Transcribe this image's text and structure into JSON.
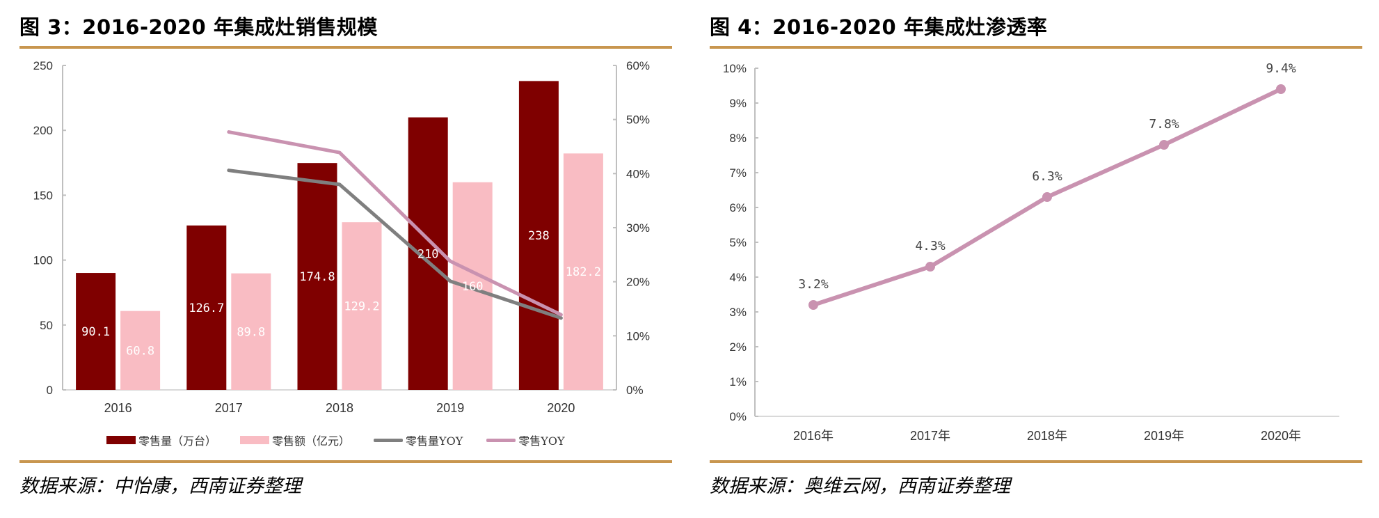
{
  "colors": {
    "rule": "#c8964f",
    "axis": "#bfbfbf",
    "volume_bar": "#7f0000",
    "sales_bar": "#f9bcc3",
    "volume_yoy": "#7f7f7f",
    "sales_yoy": "#c992b0",
    "penetration": "#c992b0"
  },
  "left": {
    "title": "图 3：2016-2020 年集成灶销售规模",
    "source": "数据来源：中怡康，西南证券整理"
  },
  "right": {
    "title": "图 4：2016-2020 年集成灶渗透率",
    "source": "数据来源：奥维云网，西南证券整理"
  },
  "chart_data": [
    {
      "type": "bar",
      "title": "2016-2020 年集成灶销售规模",
      "categories": [
        "2016",
        "2017",
        "2018",
        "2019",
        "2020"
      ],
      "ylim_left": [
        0,
        250
      ],
      "yticks_left": [
        "0",
        "50",
        "100",
        "150",
        "200",
        "250"
      ],
      "ylim_right": [
        0,
        60
      ],
      "yticks_right": [
        "0%",
        "10%",
        "20%",
        "30%",
        "40%",
        "50%",
        "60%"
      ],
      "grid": false,
      "legend_position": "bottom",
      "series": [
        {
          "name": "零售量（万台）",
          "kind": "bar",
          "axis": "left",
          "values": [
            90.1,
            126.7,
            174.8,
            210,
            238
          ],
          "labels": [
            "90.1",
            "126.7",
            "174.8",
            "210",
            "238"
          ]
        },
        {
          "name": "零售额（亿元）",
          "kind": "bar",
          "axis": "left",
          "values": [
            60.8,
            89.8,
            129.2,
            160,
            182.2
          ],
          "labels": [
            "60.8",
            "89.8",
            "129.2",
            "160",
            "182.2"
          ]
        },
        {
          "name": "零售量YOY",
          "kind": "line",
          "axis": "right",
          "values": [
            null,
            40.6,
            38.0,
            20.1,
            13.3
          ]
        },
        {
          "name": "零售YOY",
          "kind": "line",
          "axis": "right",
          "values": [
            null,
            47.7,
            43.9,
            23.8,
            13.9
          ]
        }
      ]
    },
    {
      "type": "line",
      "title": "2016-2020 年集成灶渗透率",
      "categories": [
        "2016年",
        "2017年",
        "2018年",
        "2019年",
        "2020年"
      ],
      "ylim": [
        0,
        10
      ],
      "yticks": [
        "0%",
        "1%",
        "2%",
        "3%",
        "4%",
        "5%",
        "6%",
        "7%",
        "8%",
        "9%",
        "10%"
      ],
      "grid": false,
      "series": [
        {
          "name": "渗透率",
          "values": [
            3.2,
            4.3,
            6.3,
            7.8,
            9.4
          ],
          "labels": [
            "3.2%",
            "4.3%",
            "6.3%",
            "7.8%",
            "9.4%"
          ]
        }
      ]
    }
  ]
}
